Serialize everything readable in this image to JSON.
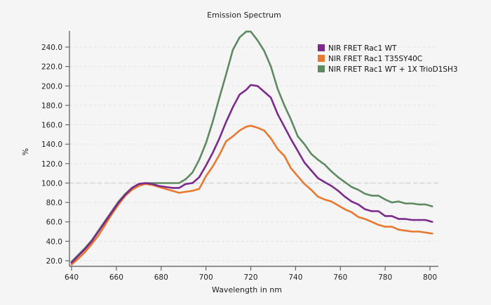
{
  "chart_data": {
    "type": "line",
    "title": "Emission Spectrum",
    "xlabel": "Wavelength in nm",
    "ylabel": "%",
    "xlim": [
      640,
      805
    ],
    "ylim": [
      15,
      258
    ],
    "grid": true,
    "reference_line": 100,
    "legend_position": "top-right",
    "xticks": [
      640,
      660,
      680,
      700,
      720,
      740,
      760,
      780,
      800
    ],
    "xtick_labels": [
      "640",
      "660",
      "680",
      "700",
      "720",
      "740",
      "760",
      "780",
      "800"
    ],
    "yticks": [
      20,
      40,
      60,
      80,
      100,
      120,
      140,
      160,
      180,
      200,
      220,
      240
    ],
    "ytick_labels": [
      "20.0",
      "40.0",
      "60.0",
      "80.0",
      "100.0",
      "120.0",
      "140.0",
      "160.0",
      "180.0",
      "200.0",
      "220.0",
      "240.0"
    ],
    "x": [
      640,
      643,
      646,
      649,
      652,
      655,
      658,
      661,
      664,
      667,
      670,
      673,
      676,
      679,
      682,
      685,
      688,
      691,
      694,
      697,
      700,
      703,
      706,
      709,
      712,
      715,
      718,
      720,
      723,
      726,
      729,
      732,
      735,
      738,
      741,
      744,
      747,
      750,
      753,
      756,
      759,
      762,
      765,
      768,
      771,
      774,
      777,
      780,
      783,
      786,
      789,
      792,
      795,
      798,
      801
    ],
    "series": [
      {
        "name": "NIR FRET Rac1 WT",
        "color": "#7b2a8c",
        "values": [
          18,
          25,
          32,
          40,
          50,
          60,
          70,
          80,
          88,
          95,
          99,
          100,
          99,
          97,
          96,
          95,
          95,
          99,
          100,
          106,
          118,
          131,
          146,
          163,
          178,
          191,
          196,
          201,
          200,
          194,
          188,
          171,
          158,
          145,
          133,
          121,
          113,
          105,
          101,
          97,
          92,
          86,
          81,
          78,
          73,
          71,
          71,
          66,
          66,
          63,
          63,
          62,
          62,
          62,
          60
        ]
      },
      {
        "name": "NIR FRET Rac1 T35SY40C",
        "color": "#e8782e",
        "values": [
          16,
          22,
          29,
          37,
          46,
          57,
          68,
          78,
          87,
          93,
          97,
          99,
          98,
          96,
          94,
          92,
          90,
          91,
          92,
          94,
          107,
          117,
          129,
          143,
          148,
          154,
          158,
          159,
          157,
          154,
          146,
          135,
          128,
          115,
          107,
          99,
          93,
          86,
          83,
          81,
          77,
          73,
          70,
          65,
          63,
          60,
          57,
          55,
          55,
          52,
          51,
          50,
          50,
          49,
          48
        ]
      },
      {
        "name": "NIR FRET Rac1 WT + 1X TrioD1SH3",
        "color": "#5e8a62",
        "values": [
          19,
          26,
          33,
          41,
          51,
          61,
          71,
          81,
          89,
          95,
          99,
          100,
          100,
          100,
          100,
          100,
          100,
          104,
          111,
          124,
          141,
          163,
          188,
          212,
          237,
          250,
          256,
          256,
          247,
          236,
          220,
          197,
          180,
          165,
          148,
          140,
          130,
          124,
          119,
          112,
          106,
          101,
          96,
          93,
          89,
          87,
          87,
          83,
          80,
          81,
          79,
          79,
          78,
          78,
          76
        ]
      }
    ]
  }
}
